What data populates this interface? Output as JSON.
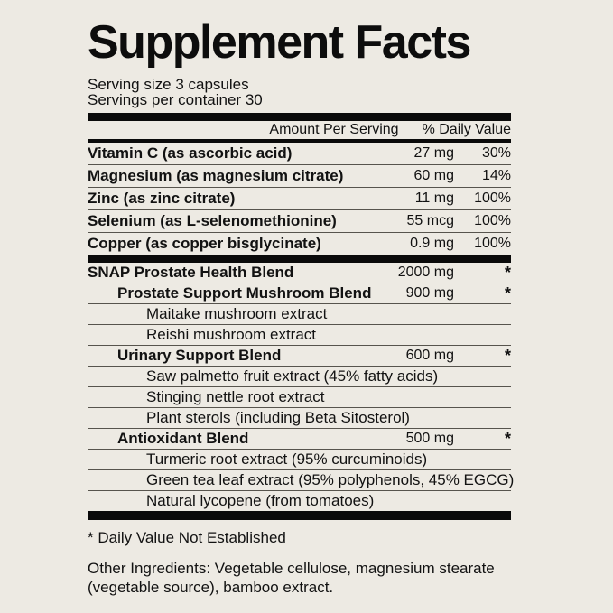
{
  "label": {
    "title": "Supplement Facts",
    "serving_size": "Serving size 3 capsules",
    "servings_per_container": "Servings per container 30",
    "columns": {
      "amount": "Amount Per Serving",
      "daily_value": "% Daily Value"
    },
    "nutrients": [
      {
        "name": "Vitamin C (as ascorbic acid)",
        "amount": "27 mg",
        "dv": "30%",
        "bold": true,
        "indent": 0
      },
      {
        "name": "Magnesium (as magnesium citrate)",
        "amount": "60 mg",
        "dv": "14%",
        "bold": true,
        "indent": 0
      },
      {
        "name": "Zinc (as zinc citrate)",
        "amount": "11 mg",
        "dv": "100%",
        "bold": true,
        "indent": 0
      },
      {
        "name": "Selenium (as L-selenomethionine)",
        "amount": "55 mcg",
        "dv": "100%",
        "bold": true,
        "indent": 0
      },
      {
        "name": "Copper (as copper bisglycinate)",
        "amount": "0.9 mg",
        "dv": "100%",
        "bold": true,
        "indent": 0
      }
    ],
    "blend_rows": [
      {
        "name": "SNAP Prostate Health Blend",
        "amount": "2000 mg",
        "dv": "*",
        "bold": true,
        "indent": 0
      },
      {
        "name": "Prostate Support Mushroom Blend",
        "amount": "900 mg",
        "dv": "*",
        "bold": true,
        "indent": 1
      },
      {
        "name": "Maitake mushroom extract",
        "amount": "",
        "dv": "",
        "bold": false,
        "indent": 2
      },
      {
        "name": "Reishi mushroom extract",
        "amount": "",
        "dv": "",
        "bold": false,
        "indent": 2
      },
      {
        "name": "Urinary Support Blend",
        "amount": "600 mg",
        "dv": "*",
        "bold": true,
        "indent": 1
      },
      {
        "name": "Saw palmetto fruit extract (45% fatty acids)",
        "amount": "",
        "dv": "",
        "bold": false,
        "indent": 2
      },
      {
        "name": "Stinging nettle root extract",
        "amount": "",
        "dv": "",
        "bold": false,
        "indent": 2
      },
      {
        "name": "Plant sterols (including Beta Sitosterol)",
        "amount": "",
        "dv": "",
        "bold": false,
        "indent": 2
      },
      {
        "name": "Antioxidant Blend",
        "amount": "500 mg",
        "dv": "*",
        "bold": true,
        "indent": 1
      },
      {
        "name": "Turmeric root extract (95% curcuminoids)",
        "amount": "",
        "dv": "",
        "bold": false,
        "indent": 2
      },
      {
        "name": "Green tea leaf extract (95% polyphenols, 45% EGCG)",
        "amount": "",
        "dv": "",
        "bold": false,
        "indent": 2
      },
      {
        "name": "Natural lycopene (from tomatoes)",
        "amount": "",
        "dv": "",
        "bold": false,
        "indent": 2
      }
    ],
    "footnote": "* Daily Value Not Established",
    "other_ingredients": "Other Ingredients: Vegetable cellulose, magnesium stearate (vegetable source), bamboo extract.",
    "colors": {
      "background": "#edeae3",
      "text": "#121212",
      "bar": "#0a0a0a",
      "rule": "#57544d"
    }
  }
}
